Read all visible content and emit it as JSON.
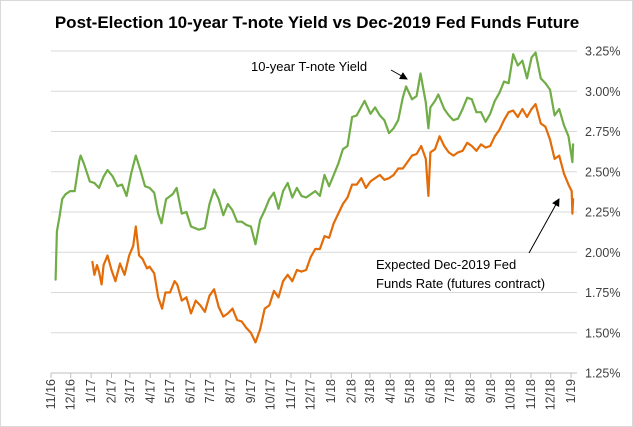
{
  "chart_data": {
    "type": "line",
    "title": "Post-Election 10-year T-note Yield vs Dec-2019 Fed Funds Future",
    "xlabel": "",
    "ylabel": "",
    "x_axis": {
      "type": "date",
      "range": [
        "2016-11-01",
        "2019-01-10"
      ],
      "tick_labels": [
        "11/16",
        "12/16",
        "1/17",
        "2/17",
        "3/17",
        "4/17",
        "5/17",
        "6/17",
        "7/17",
        "8/17",
        "9/17",
        "10/17",
        "11/17",
        "12/17",
        "1/18",
        "2/18",
        "3/18",
        "4/18",
        "5/18",
        "6/18",
        "7/18",
        "8/18",
        "9/18",
        "10/18",
        "11/18",
        "12/18",
        "1/19"
      ],
      "tick_dates": [
        "2016-11-01",
        "2016-12-01",
        "2017-01-01",
        "2017-02-01",
        "2017-03-01",
        "2017-04-01",
        "2017-05-01",
        "2017-06-01",
        "2017-07-01",
        "2017-08-01",
        "2017-09-01",
        "2017-10-01",
        "2017-11-01",
        "2017-12-01",
        "2018-01-01",
        "2018-02-01",
        "2018-03-01",
        "2018-04-01",
        "2018-05-01",
        "2018-06-01",
        "2018-07-01",
        "2018-08-01",
        "2018-09-01",
        "2018-10-01",
        "2018-11-01",
        "2018-12-01",
        "2019-01-01"
      ]
    },
    "y_axis": {
      "position": "right",
      "ylim": [
        1.25,
        3.25
      ],
      "tick_values": [
        1.25,
        1.5,
        1.75,
        2.0,
        2.25,
        2.5,
        2.75,
        3.0,
        3.25
      ],
      "tick_labels": [
        "1.25%",
        "1.50%",
        "1.75%",
        "2.00%",
        "2.25%",
        "2.50%",
        "2.75%",
        "3.00%",
        "3.25%"
      ]
    },
    "grid": true,
    "series": [
      {
        "name": "10-year T-note Yield",
        "color": "#70ad47",
        "points": [
          [
            "2016-11-08",
            1.83
          ],
          [
            "2016-11-10",
            2.13
          ],
          [
            "2016-11-14",
            2.22
          ],
          [
            "2016-11-18",
            2.33
          ],
          [
            "2016-11-23",
            2.36
          ],
          [
            "2016-11-30",
            2.38
          ],
          [
            "2016-12-07",
            2.38
          ],
          [
            "2016-12-14",
            2.57
          ],
          [
            "2016-12-16",
            2.6
          ],
          [
            "2016-12-21",
            2.55
          ],
          [
            "2016-12-30",
            2.44
          ],
          [
            "2017-01-06",
            2.43
          ],
          [
            "2017-01-13",
            2.4
          ],
          [
            "2017-01-20",
            2.47
          ],
          [
            "2017-01-26",
            2.51
          ],
          [
            "2017-02-03",
            2.47
          ],
          [
            "2017-02-10",
            2.41
          ],
          [
            "2017-02-17",
            2.42
          ],
          [
            "2017-02-24",
            2.35
          ],
          [
            "2017-03-03",
            2.49
          ],
          [
            "2017-03-10",
            2.6
          ],
          [
            "2017-03-17",
            2.51
          ],
          [
            "2017-03-24",
            2.41
          ],
          [
            "2017-03-31",
            2.4
          ],
          [
            "2017-04-07",
            2.37
          ],
          [
            "2017-04-13",
            2.24
          ],
          [
            "2017-04-18",
            2.18
          ],
          [
            "2017-04-25",
            2.33
          ],
          [
            "2017-05-05",
            2.36
          ],
          [
            "2017-05-11",
            2.4
          ],
          [
            "2017-05-19",
            2.24
          ],
          [
            "2017-05-26",
            2.25
          ],
          [
            "2017-06-02",
            2.16
          ],
          [
            "2017-06-14",
            2.14
          ],
          [
            "2017-06-23",
            2.15
          ],
          [
            "2017-06-30",
            2.3
          ],
          [
            "2017-07-07",
            2.39
          ],
          [
            "2017-07-14",
            2.33
          ],
          [
            "2017-07-21",
            2.23
          ],
          [
            "2017-07-28",
            2.3
          ],
          [
            "2017-08-04",
            2.26
          ],
          [
            "2017-08-11",
            2.19
          ],
          [
            "2017-08-18",
            2.19
          ],
          [
            "2017-08-25",
            2.17
          ],
          [
            "2017-09-01",
            2.16
          ],
          [
            "2017-09-08",
            2.05
          ],
          [
            "2017-09-15",
            2.2
          ],
          [
            "2017-09-22",
            2.26
          ],
          [
            "2017-09-29",
            2.33
          ],
          [
            "2017-10-06",
            2.37
          ],
          [
            "2017-10-13",
            2.27
          ],
          [
            "2017-10-20",
            2.38
          ],
          [
            "2017-10-27",
            2.43
          ],
          [
            "2017-11-03",
            2.34
          ],
          [
            "2017-11-10",
            2.4
          ],
          [
            "2017-11-17",
            2.35
          ],
          [
            "2017-11-24",
            2.34
          ],
          [
            "2017-12-01",
            2.36
          ],
          [
            "2017-12-08",
            2.38
          ],
          [
            "2017-12-15",
            2.35
          ],
          [
            "2017-12-22",
            2.48
          ],
          [
            "2017-12-29",
            2.41
          ],
          [
            "2018-01-05",
            2.48
          ],
          [
            "2018-01-12",
            2.55
          ],
          [
            "2018-01-19",
            2.64
          ],
          [
            "2018-01-26",
            2.66
          ],
          [
            "2018-02-02",
            2.84
          ],
          [
            "2018-02-09",
            2.85
          ],
          [
            "2018-02-21",
            2.94
          ],
          [
            "2018-03-02",
            2.86
          ],
          [
            "2018-03-09",
            2.9
          ],
          [
            "2018-03-16",
            2.85
          ],
          [
            "2018-03-23",
            2.82
          ],
          [
            "2018-03-30",
            2.74
          ],
          [
            "2018-04-06",
            2.77
          ],
          [
            "2018-04-13",
            2.82
          ],
          [
            "2018-04-20",
            2.96
          ],
          [
            "2018-04-25",
            3.03
          ],
          [
            "2018-05-04",
            2.95
          ],
          [
            "2018-05-11",
            2.97
          ],
          [
            "2018-05-17",
            3.11
          ],
          [
            "2018-05-25",
            2.93
          ],
          [
            "2018-05-29",
            2.77
          ],
          [
            "2018-06-01",
            2.9
          ],
          [
            "2018-06-08",
            2.94
          ],
          [
            "2018-06-13",
            2.98
          ],
          [
            "2018-06-22",
            2.89
          ],
          [
            "2018-06-29",
            2.85
          ],
          [
            "2018-07-06",
            2.82
          ],
          [
            "2018-07-13",
            2.83
          ],
          [
            "2018-07-20",
            2.89
          ],
          [
            "2018-07-27",
            2.96
          ],
          [
            "2018-08-03",
            2.95
          ],
          [
            "2018-08-10",
            2.87
          ],
          [
            "2018-08-17",
            2.87
          ],
          [
            "2018-08-24",
            2.81
          ],
          [
            "2018-08-31",
            2.86
          ],
          [
            "2018-09-07",
            2.94
          ],
          [
            "2018-09-14",
            2.99
          ],
          [
            "2018-09-21",
            3.06
          ],
          [
            "2018-09-28",
            3.05
          ],
          [
            "2018-10-05",
            3.23
          ],
          [
            "2018-10-12",
            3.16
          ],
          [
            "2018-10-19",
            3.19
          ],
          [
            "2018-10-26",
            3.08
          ],
          [
            "2018-11-02",
            3.21
          ],
          [
            "2018-11-08",
            3.24
          ],
          [
            "2018-11-16",
            3.08
          ],
          [
            "2018-11-23",
            3.05
          ],
          [
            "2018-11-30",
            3.01
          ],
          [
            "2018-12-07",
            2.85
          ],
          [
            "2018-12-14",
            2.89
          ],
          [
            "2018-12-21",
            2.79
          ],
          [
            "2018-12-28",
            2.72
          ],
          [
            "2019-01-03",
            2.56
          ],
          [
            "2019-01-04",
            2.67
          ]
        ]
      },
      {
        "name": "Expected Dec-2019 Fed Funds Rate (futures contract)",
        "color": "#e36c09",
        "points": [
          [
            "2017-01-03",
            1.94
          ],
          [
            "2017-01-06",
            1.86
          ],
          [
            "2017-01-10",
            1.92
          ],
          [
            "2017-01-13",
            1.88
          ],
          [
            "2017-01-17",
            1.8
          ],
          [
            "2017-01-20",
            1.92
          ],
          [
            "2017-01-26",
            1.98
          ],
          [
            "2017-02-01",
            1.89
          ],
          [
            "2017-02-07",
            1.82
          ],
          [
            "2017-02-14",
            1.93
          ],
          [
            "2017-02-21",
            1.86
          ],
          [
            "2017-02-28",
            1.98
          ],
          [
            "2017-03-06",
            2.04
          ],
          [
            "2017-03-10",
            2.16
          ],
          [
            "2017-03-15",
            1.98
          ],
          [
            "2017-03-20",
            1.96
          ],
          [
            "2017-03-27",
            1.9
          ],
          [
            "2017-03-31",
            1.91
          ],
          [
            "2017-04-07",
            1.87
          ],
          [
            "2017-04-13",
            1.72
          ],
          [
            "2017-04-19",
            1.65
          ],
          [
            "2017-04-24",
            1.75
          ],
          [
            "2017-05-01",
            1.75
          ],
          [
            "2017-05-08",
            1.82
          ],
          [
            "2017-05-12",
            1.8
          ],
          [
            "2017-05-19",
            1.7
          ],
          [
            "2017-05-26",
            1.72
          ],
          [
            "2017-06-02",
            1.62
          ],
          [
            "2017-06-09",
            1.7
          ],
          [
            "2017-06-16",
            1.67
          ],
          [
            "2017-06-23",
            1.63
          ],
          [
            "2017-06-30",
            1.73
          ],
          [
            "2017-07-07",
            1.77
          ],
          [
            "2017-07-14",
            1.66
          ],
          [
            "2017-07-21",
            1.6
          ],
          [
            "2017-07-28",
            1.62
          ],
          [
            "2017-08-04",
            1.65
          ],
          [
            "2017-08-11",
            1.58
          ],
          [
            "2017-08-18",
            1.57
          ],
          [
            "2017-08-25",
            1.53
          ],
          [
            "2017-09-01",
            1.5
          ],
          [
            "2017-09-08",
            1.44
          ],
          [
            "2017-09-15",
            1.52
          ],
          [
            "2017-09-22",
            1.65
          ],
          [
            "2017-09-29",
            1.67
          ],
          [
            "2017-10-06",
            1.76
          ],
          [
            "2017-10-13",
            1.72
          ],
          [
            "2017-10-20",
            1.82
          ],
          [
            "2017-10-27",
            1.86
          ],
          [
            "2017-11-03",
            1.82
          ],
          [
            "2017-11-10",
            1.89
          ],
          [
            "2017-11-17",
            1.88
          ],
          [
            "2017-11-24",
            1.89
          ],
          [
            "2017-12-01",
            1.97
          ],
          [
            "2017-12-08",
            2.02
          ],
          [
            "2017-12-15",
            2.02
          ],
          [
            "2017-12-22",
            2.1
          ],
          [
            "2017-12-29",
            2.09
          ],
          [
            "2018-01-05",
            2.18
          ],
          [
            "2018-01-12",
            2.24
          ],
          [
            "2018-01-19",
            2.3
          ],
          [
            "2018-01-26",
            2.34
          ],
          [
            "2018-02-02",
            2.42
          ],
          [
            "2018-02-09",
            2.42
          ],
          [
            "2018-02-16",
            2.46
          ],
          [
            "2018-02-23",
            2.4
          ],
          [
            "2018-03-02",
            2.44
          ],
          [
            "2018-03-09",
            2.46
          ],
          [
            "2018-03-16",
            2.48
          ],
          [
            "2018-03-23",
            2.45
          ],
          [
            "2018-03-30",
            2.46
          ],
          [
            "2018-04-06",
            2.48
          ],
          [
            "2018-04-13",
            2.52
          ],
          [
            "2018-04-20",
            2.52
          ],
          [
            "2018-04-27",
            2.56
          ],
          [
            "2018-05-04",
            2.6
          ],
          [
            "2018-05-11",
            2.61
          ],
          [
            "2018-05-18",
            2.66
          ],
          [
            "2018-05-25",
            2.58
          ],
          [
            "2018-05-29",
            2.35
          ],
          [
            "2018-06-01",
            2.62
          ],
          [
            "2018-06-08",
            2.64
          ],
          [
            "2018-06-15",
            2.72
          ],
          [
            "2018-06-22",
            2.66
          ],
          [
            "2018-06-29",
            2.62
          ],
          [
            "2018-07-06",
            2.6
          ],
          [
            "2018-07-13",
            2.62
          ],
          [
            "2018-07-20",
            2.63
          ],
          [
            "2018-07-27",
            2.68
          ],
          [
            "2018-08-03",
            2.66
          ],
          [
            "2018-08-10",
            2.63
          ],
          [
            "2018-08-17",
            2.67
          ],
          [
            "2018-08-24",
            2.65
          ],
          [
            "2018-08-31",
            2.66
          ],
          [
            "2018-09-07",
            2.72
          ],
          [
            "2018-09-14",
            2.76
          ],
          [
            "2018-09-21",
            2.82
          ],
          [
            "2018-09-28",
            2.87
          ],
          [
            "2018-10-05",
            2.88
          ],
          [
            "2018-10-12",
            2.84
          ],
          [
            "2018-10-19",
            2.89
          ],
          [
            "2018-10-26",
            2.84
          ],
          [
            "2018-11-02",
            2.89
          ],
          [
            "2018-11-08",
            2.92
          ],
          [
            "2018-11-16",
            2.8
          ],
          [
            "2018-11-23",
            2.78
          ],
          [
            "2018-11-30",
            2.7
          ],
          [
            "2018-12-07",
            2.58
          ],
          [
            "2018-12-14",
            2.6
          ],
          [
            "2018-12-21",
            2.49
          ],
          [
            "2018-12-28",
            2.42
          ],
          [
            "2019-01-02",
            2.38
          ],
          [
            "2019-01-03",
            2.24
          ],
          [
            "2019-01-04",
            2.33
          ]
        ]
      }
    ],
    "annotations": [
      {
        "text": "10-year T-note Yield",
        "series": 0
      },
      {
        "text_lines": [
          "Expected Dec-2019 Fed",
          "Funds Rate (futures contract)"
        ],
        "series": 1
      }
    ]
  }
}
